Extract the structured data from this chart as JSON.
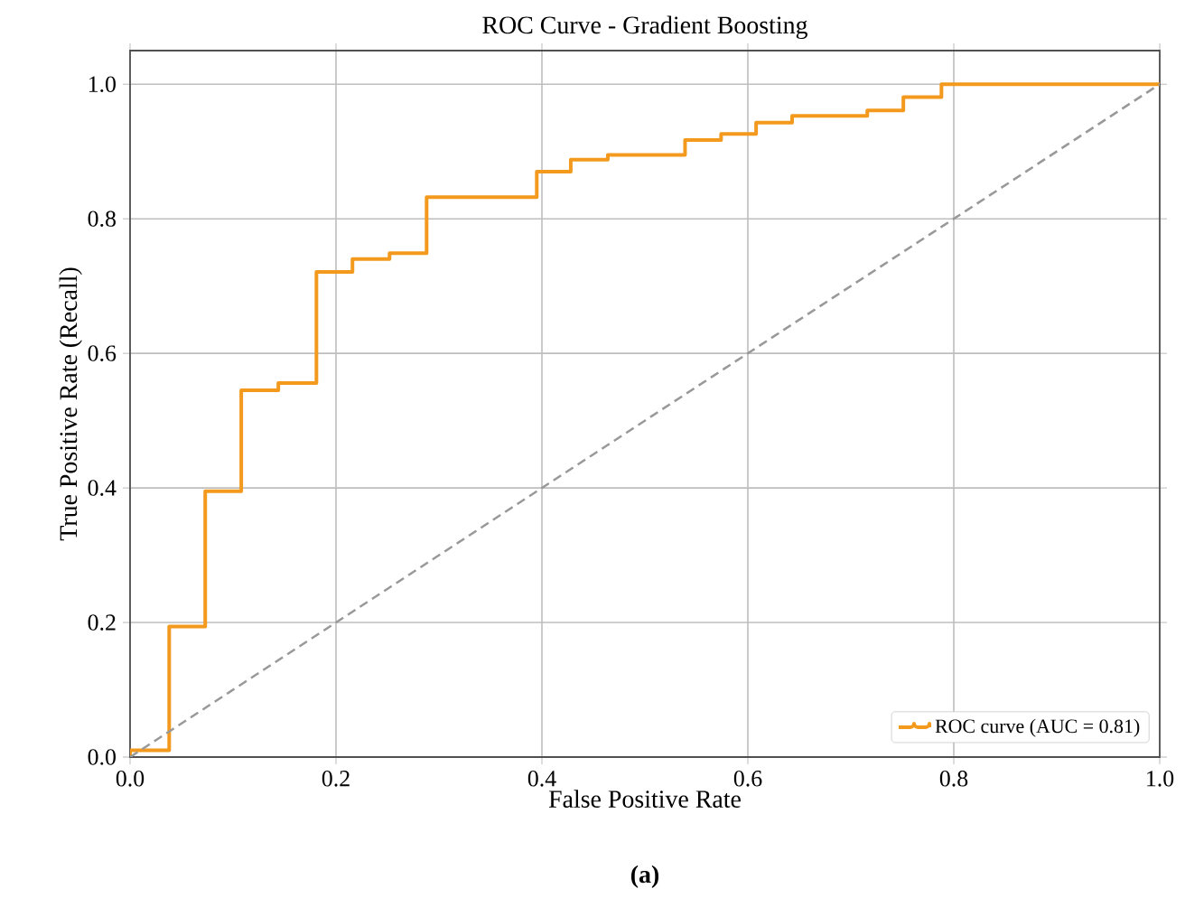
{
  "chart_data": {
    "type": "line",
    "title": "ROC Curve - Gradient Boosting",
    "xlabel": "False Positive Rate",
    "ylabel": "True Positive Rate (Recall)",
    "annotations": [
      "**(a)**"
    ],
    "xlim": [
      0,
      1
    ],
    "ylim": [
      0,
      1.05
    ],
    "xticks": [
      {
        "value": 0,
        "label": "0.0"
      },
      {
        "value": 0.2,
        "label": "0.2"
      },
      {
        "value": 0.4,
        "label": "0.4"
      },
      {
        "value": 0.6,
        "label": "0.6"
      },
      {
        "value": 0.8,
        "label": "0.8"
      },
      {
        "value": 1,
        "label": "1.0"
      }
    ],
    "yticks": [
      {
        "value": 0,
        "label": "0.0"
      },
      {
        "value": 0.2,
        "label": "0.2"
      },
      {
        "value": 0.4,
        "label": "0.4"
      },
      {
        "value": 0.6,
        "label": "0.6"
      },
      {
        "value": 0.8,
        "label": "0.8"
      },
      {
        "value": 1,
        "label": "1.0"
      }
    ],
    "grid": true,
    "legend": "bottom right",
    "series": [
      {
        "name": "ROC curve (AUC = 0.81)",
        "type": "step",
        "color": "#f39a1e",
        "line_style": "solid",
        "x": [
          0,
          0,
          0.038,
          0.073,
          0.108,
          0.144,
          0.181,
          0.216,
          0.252,
          0.288,
          0.395,
          0.428,
          0.464,
          0.539,
          0.574,
          0.608,
          0.643,
          0.716,
          0.751,
          0.788,
          1
        ],
        "values": [
          0,
          0.01,
          0.194,
          0.395,
          0.545,
          0.556,
          0.721,
          0.74,
          0.749,
          0.832,
          0.87,
          0.888,
          0.895,
          0.917,
          0.926,
          0.943,
          0.953,
          0.961,
          0.981,
          1,
          1
        ]
      },
      {
        "color": "#999999",
        "line_style": "dashed",
        "x": [
          0,
          1
        ],
        "values": [
          0,
          1
        ]
      }
    ]
  }
}
